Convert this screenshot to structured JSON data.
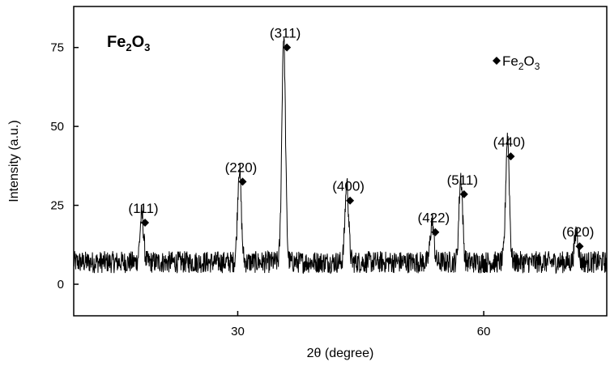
{
  "chart_data": {
    "type": "line",
    "title": "",
    "sample_label": {
      "main": "Fe",
      "sub1": "2",
      "mid": "O",
      "sub2": "3"
    },
    "xlabel": "2θ (degree)",
    "ylabel": "Intensity (a.u.)",
    "xlim": [
      10,
      75
    ],
    "ylim": [
      -10,
      88
    ],
    "x_ticks": [
      30,
      60
    ],
    "x_tick_labels": [
      "30",
      "60"
    ],
    "y_ticks": [
      0,
      25,
      50,
      75
    ],
    "y_tick_labels": [
      "0",
      "25",
      "50",
      "75"
    ],
    "grid": false,
    "legend": {
      "position": "top-right",
      "marker": "diamond",
      "label_main": "Fe",
      "label_sub1": "2",
      "label_mid": "O",
      "label_sub2": "3"
    },
    "baseline": 7,
    "noise_amplitude": 3.5,
    "peaks": [
      {
        "label": "(111)",
        "x": 18.3,
        "height": 15,
        "marker_y": 19.5
      },
      {
        "label": "(220)",
        "x": 30.2,
        "height": 30,
        "marker_y": 32.5
      },
      {
        "label": "(311)",
        "x": 35.6,
        "height": 72,
        "marker_y": 75.0
      },
      {
        "label": "(400)",
        "x": 43.3,
        "height": 25,
        "marker_y": 26.5
      },
      {
        "label": "(422)",
        "x": 53.7,
        "height": 13,
        "marker_y": 16.5
      },
      {
        "label": "(511)",
        "x": 57.2,
        "height": 27,
        "marker_y": 28.5
      },
      {
        "label": "(440)",
        "x": 62.9,
        "height": 40,
        "marker_y": 40.5
      },
      {
        "label": "(620)",
        "x": 71.3,
        "height": 10,
        "marker_y": 12.0
      }
    ]
  }
}
